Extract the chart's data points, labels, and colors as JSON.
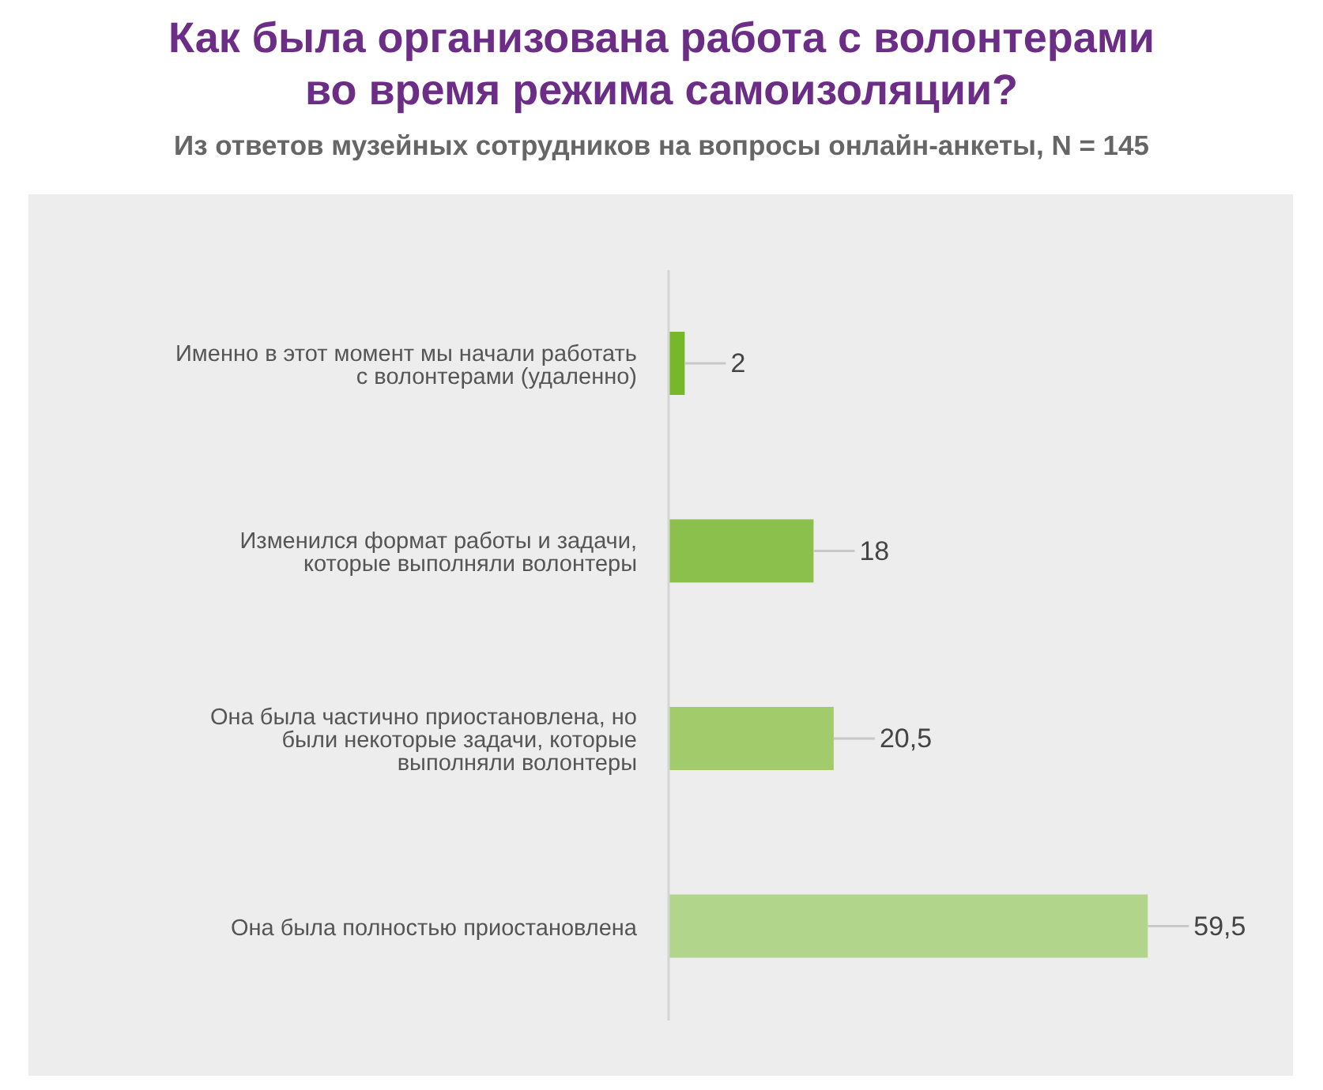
{
  "chart_data": {
    "type": "bar",
    "orientation": "horizontal",
    "title": "Как была организована работа с волонтерами во время режима самоизоляции?",
    "subtitle": "Из ответов музейных сотрудников на вопросы онлайн-анкеты, N = 145",
    "categories": [
      "Именно в этот момент мы начали работать с волонтерами (удаленно)",
      "Изменился формат работы и задачи, которые выполняли волонтеры",
      "Она была частично приостановлена, но были некоторые задачи, которые выполняли волонтеры",
      "Она была полностью приостановлена"
    ],
    "values": [
      2,
      18,
      20.5,
      59.5
    ],
    "colors": [
      "#76b82a",
      "#8cc04c",
      "#a2cb6c",
      "#b1d58b"
    ],
    "value_labels": [
      "2",
      "18",
      "20,5",
      "59,5"
    ]
  }
}
